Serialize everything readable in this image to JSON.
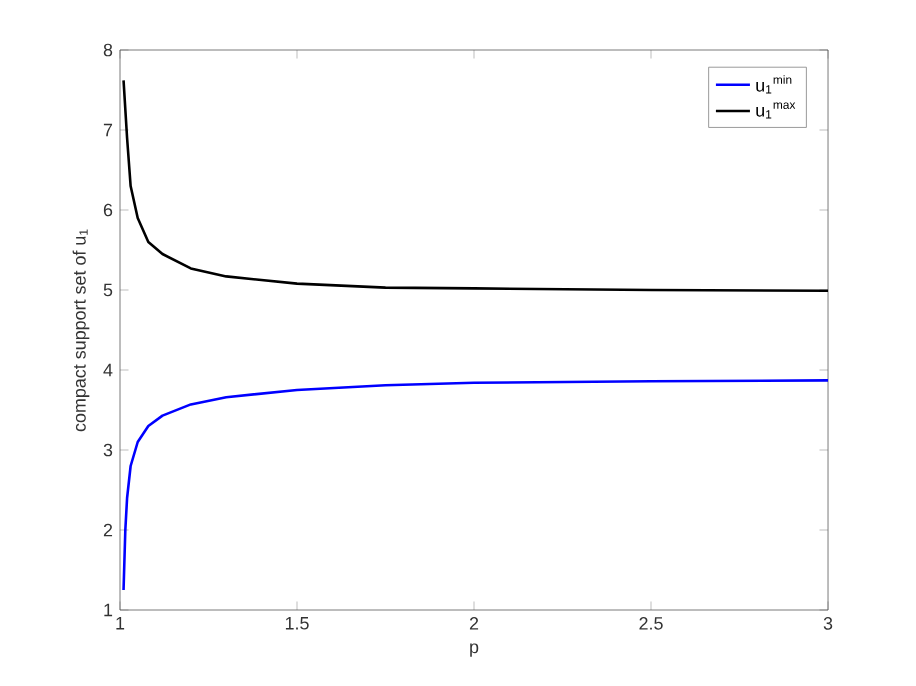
{
  "chart_data": {
    "type": "line",
    "xlabel": "p",
    "ylabel": "compact support set of u$_{1}$",
    "xlim": [
      1,
      3
    ],
    "ylim": [
      1,
      8
    ],
    "xticks": [
      1,
      1.5,
      2,
      2.5,
      3
    ],
    "yticks": [
      1,
      2,
      3,
      4,
      5,
      6,
      7,
      8
    ],
    "legend": "top right",
    "grid": false,
    "series": [
      {
        "name": "u$_{1}$$^{min}$",
        "color": "#0000ff",
        "x": [
          1.01,
          1.015,
          1.02,
          1.03,
          1.05,
          1.08,
          1.12,
          1.2,
          1.3,
          1.5,
          1.75,
          2,
          2.5,
          3
        ],
        "values": [
          1.25,
          2.0,
          2.4,
          2.8,
          3.1,
          3.3,
          3.43,
          3.57,
          3.66,
          3.75,
          3.81,
          3.84,
          3.86,
          3.87
        ]
      },
      {
        "name": "u$_{1}$$^{max}$",
        "color": "#000000",
        "x": [
          1.01,
          1.02,
          1.03,
          1.05,
          1.08,
          1.12,
          1.2,
          1.3,
          1.5,
          1.75,
          2,
          2.5,
          3
        ],
        "values": [
          7.62,
          6.9,
          6.3,
          5.9,
          5.6,
          5.45,
          5.27,
          5.17,
          5.08,
          5.03,
          5.02,
          5.0,
          4.99
        ]
      }
    ]
  }
}
